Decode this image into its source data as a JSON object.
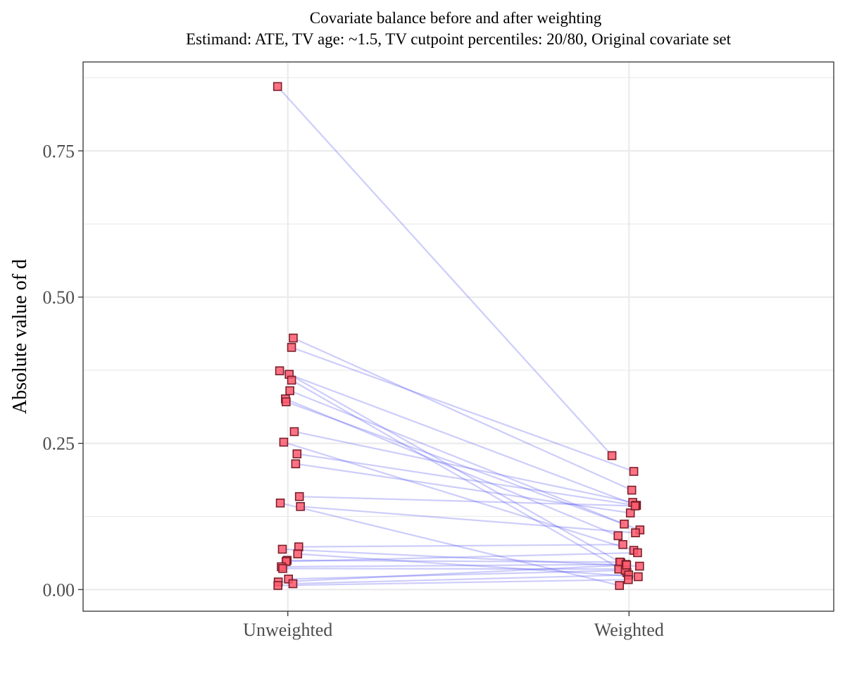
{
  "chart_data": {
    "type": "scatter",
    "title": "Covariate balance before and after weighting",
    "subtitle": "Estimand: ATE, TV age: ~1.5, TV cutpoint percentiles: 20/80, Original covariate set",
    "xlabel": "",
    "ylabel": "Absolute value of d",
    "categories": [
      "Unweighted",
      "Weighted"
    ],
    "ylim": [
      -0.037,
      0.902
    ],
    "yticks": [
      0.0,
      0.25,
      0.5,
      0.75
    ],
    "ytick_labels": [
      "0.00",
      "0.25",
      "0.50",
      "0.75"
    ],
    "grid": true,
    "legend": "none",
    "colors": {
      "point_fill": "#ff5a6e",
      "point_stroke": "#7a1f2b",
      "line": "#4a4af0",
      "grid": "#ebebeb",
      "panel_border": "#333333"
    },
    "pairs": [
      {
        "unweighted": 0.86,
        "weighted": 0.229,
        "jitter": [
          -0.03,
          -0.05
        ]
      },
      {
        "unweighted": 0.43,
        "weighted": 0.17,
        "jitter": [
          0.016,
          0.008
        ]
      },
      {
        "unweighted": 0.414,
        "weighted": 0.202,
        "jitter": [
          0.011,
          0.014
        ]
      },
      {
        "unweighted": 0.374,
        "weighted": 0.144,
        "jitter": [
          -0.024,
          0.022
        ]
      },
      {
        "unweighted": 0.368,
        "weighted": 0.046,
        "jitter": [
          0.004,
          -0.024
        ]
      },
      {
        "unweighted": 0.358,
        "weighted": 0.029,
        "jitter": [
          0.011,
          -0.006
        ]
      },
      {
        "unweighted": 0.34,
        "weighted": 0.112,
        "jitter": [
          0.006,
          -0.014
        ]
      },
      {
        "unweighted": 0.326,
        "weighted": 0.092,
        "jitter": [
          -0.007,
          -0.032
        ]
      },
      {
        "unweighted": 0.321,
        "weighted": 0.102,
        "jitter": [
          -0.005,
          0.032
        ]
      },
      {
        "unweighted": 0.27,
        "weighted": 0.149,
        "jitter": [
          0.019,
          0.011
        ]
      },
      {
        "unweighted": 0.252,
        "weighted": 0.067,
        "jitter": [
          -0.012,
          0.014
        ]
      },
      {
        "unweighted": 0.232,
        "weighted": 0.144,
        "jitter": [
          0.027,
          0.02
        ]
      },
      {
        "unweighted": 0.215,
        "weighted": 0.131,
        "jitter": [
          0.023,
          0.004
        ]
      },
      {
        "unweighted": 0.159,
        "weighted": 0.143,
        "jitter": [
          0.034,
          0.018
        ]
      },
      {
        "unweighted": 0.148,
        "weighted": 0.007,
        "jitter": [
          -0.022,
          -0.028
        ]
      },
      {
        "unweighted": 0.142,
        "weighted": 0.097,
        "jitter": [
          0.037,
          0.019
        ]
      },
      {
        "unweighted": 0.073,
        "weighted": 0.077,
        "jitter": [
          0.032,
          -0.018
        ]
      },
      {
        "unweighted": 0.069,
        "weighted": 0.04,
        "jitter": [
          -0.016,
          0.031
        ]
      },
      {
        "unweighted": 0.061,
        "weighted": 0.022,
        "jitter": [
          0.029,
          0.027
        ]
      },
      {
        "unweighted": 0.05,
        "weighted": 0.047,
        "jitter": [
          -0.002,
          -0.027
        ]
      },
      {
        "unweighted": 0.048,
        "weighted": 0.063,
        "jitter": [
          -0.005,
          0.025
        ]
      },
      {
        "unweighted": 0.039,
        "weighted": 0.043,
        "jitter": [
          -0.019,
          -0.009
        ]
      },
      {
        "unweighted": 0.036,
        "weighted": 0.035,
        "jitter": [
          -0.015,
          -0.03
        ]
      },
      {
        "unweighted": 0.018,
        "weighted": 0.033,
        "jitter": [
          0.002,
          -0.011
        ]
      },
      {
        "unweighted": 0.013,
        "weighted": 0.042,
        "jitter": [
          -0.028,
          -0.007
        ]
      },
      {
        "unweighted": 0.01,
        "weighted": 0.025,
        "jitter": [
          0.015,
          -0.001
        ]
      },
      {
        "unweighted": 0.007,
        "weighted": 0.017,
        "jitter": [
          -0.029,
          -0.002
        ]
      }
    ]
  }
}
